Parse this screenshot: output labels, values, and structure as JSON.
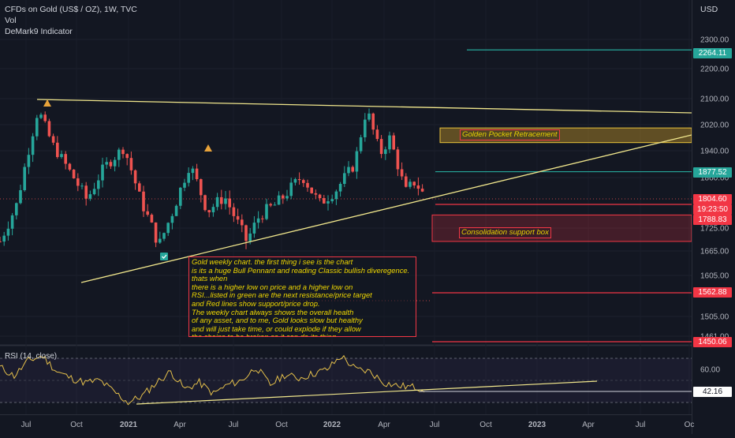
{
  "header": {
    "symbol": "CFDs on Gold (US$ / OZ), 1W, TVC",
    "vol": "Vol",
    "indicator": "DeMark9 Indicator",
    "currency": "USD"
  },
  "colors": {
    "background": "#131722",
    "up": "#26a69a",
    "down": "#ef5350",
    "trendline": "#f0e68c",
    "green_level": "#26a69a",
    "red_level": "#f23645",
    "rsi_line": "#e5c04b"
  },
  "annotations": {
    "note": "Gold weekly chart. the first thing i see is the chart\nis its a huge Bull Pennant and  reading Classic bullish diveregence.\nthats when\nthere is a higher low on price and a higher low on\nRSI...listed in green are the next resistance/price target\nand Red lines show support/price drop.\nThe weekly chart always shows the overall health\nof any asset, and to me, Gold looks slow but healthy\nand will just take time, or could explode if they allow\n the chains to be broken so it can do its thing.",
    "golden_pocket": "Golden Pocket Retracement",
    "consolidation": "Consolidation support box"
  },
  "chart_data": [
    {
      "type": "candlestick",
      "title": "CFDs on Gold (US$ / OZ), 1W, TVC",
      "y_unit": "USD",
      "y_ticks": [
        "2300.00",
        "2200.00",
        "2100.00",
        "2020.00",
        "1940.00",
        "1860.00",
        "1725.00",
        "1665.00",
        "1605.00",
        "1505.00",
        "1461.00"
      ],
      "y_ticks_values": [
        2300,
        2200,
        2100,
        2020,
        1940,
        1860,
        1725,
        1665,
        1605,
        1505,
        1461
      ],
      "x_ticks": [
        "Jul",
        "Oct",
        "2021",
        "Apr",
        "Jul",
        "Oct",
        "2022",
        "Apr",
        "Jul",
        "Oct",
        "2023",
        "Apr",
        "Jul",
        "Oc"
      ],
      "x_range": [
        "2020-06",
        "2023-10"
      ],
      "ohlc_approx": [
        {
          "date": "2020-06-01",
          "close": 1690
        },
        {
          "date": "2020-07-01",
          "close": 1790
        },
        {
          "date": "2020-08-07",
          "close": 2067
        },
        {
          "date": "2020-09-01",
          "close": 1960
        },
        {
          "date": "2020-10-01",
          "close": 1880
        },
        {
          "date": "2020-11-01",
          "close": 1800
        },
        {
          "date": "2020-12-01",
          "close": 1890
        },
        {
          "date": "2021-01-05",
          "close": 1950
        },
        {
          "date": "2021-02-01",
          "close": 1810
        },
        {
          "date": "2021-03-08",
          "close": 1680
        },
        {
          "date": "2021-04-01",
          "close": 1770
        },
        {
          "date": "2021-05-01",
          "close": 1900
        },
        {
          "date": "2021-06-01",
          "close": 1770
        },
        {
          "date": "2021-07-01",
          "close": 1810
        },
        {
          "date": "2021-08-09",
          "close": 1690
        },
        {
          "date": "2021-09-01",
          "close": 1760
        },
        {
          "date": "2021-10-01",
          "close": 1790
        },
        {
          "date": "2021-11-15",
          "close": 1865
        },
        {
          "date": "2021-12-15",
          "close": 1790
        },
        {
          "date": "2022-01-15",
          "close": 1830
        },
        {
          "date": "2022-02-15",
          "close": 1900
        },
        {
          "date": "2022-03-08",
          "close": 2070
        },
        {
          "date": "2022-04-01",
          "close": 1930
        },
        {
          "date": "2022-04-18",
          "close": 1980
        },
        {
          "date": "2022-05-15",
          "close": 1820
        },
        {
          "date": "2022-06-01",
          "close": 1850
        },
        {
          "date": "2022-06-20",
          "close": 1805
        }
      ],
      "levels": [
        {
          "label": "2264.11",
          "value": 2264.11,
          "kind": "resistance"
        },
        {
          "label": "1877.52",
          "value": 1877.52,
          "kind": "resistance"
        },
        {
          "label": "1804.60",
          "value": 1804.6,
          "kind": "current"
        },
        {
          "label": "19:23:50",
          "kind": "countdown"
        },
        {
          "label": "1788.83",
          "value": 1788.83,
          "kind": "support"
        },
        {
          "label": "1562.88",
          "value": 1562.88,
          "kind": "support"
        },
        {
          "label": "1450.06",
          "value": 1450.06,
          "kind": "support"
        }
      ],
      "zones": [
        {
          "name": "Golden Pocket Retracement",
          "from": 1965,
          "to": 2010
        },
        {
          "name": "Consolidation support box",
          "from": 1690,
          "to": 1760
        }
      ]
    },
    {
      "type": "line",
      "title": "RSI (14, close)",
      "y_ticks": [
        "60.00"
      ],
      "last_value_label": "42.16",
      "values_approx": [
        62,
        54,
        68,
        72,
        58,
        52,
        48,
        50,
        40,
        30,
        36,
        48,
        58,
        42,
        48,
        38,
        46,
        50,
        62,
        46,
        55,
        52,
        56,
        60,
        72,
        60,
        58,
        48,
        45,
        44,
        42
      ],
      "x_range": [
        "2020-06",
        "2022-06"
      ]
    }
  ]
}
